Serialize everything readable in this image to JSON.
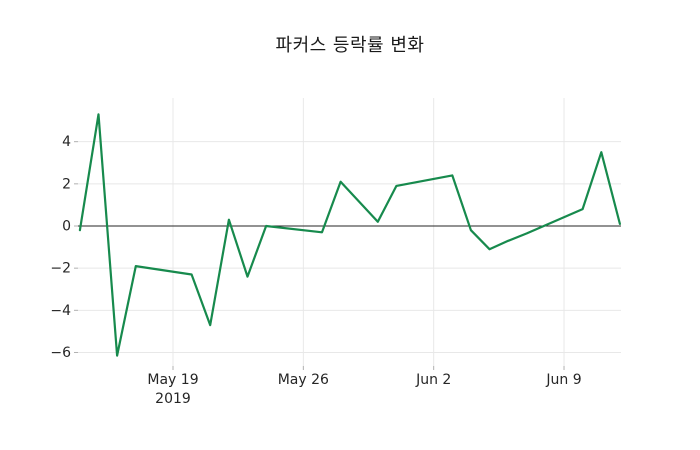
{
  "title": "파커스 등락률 변화",
  "chart_data": {
    "type": "line",
    "title": "파커스 등락률 변화",
    "legend": "none",
    "grid": true,
    "zero_line": true,
    "x_axis": {
      "unit": "date",
      "ticks": [
        {
          "label": "May 19",
          "sublabel": "2019",
          "day_offset": 0
        },
        {
          "label": "May 26",
          "sublabel": "",
          "day_offset": 7
        },
        {
          "label": "Jun 2",
          "sublabel": "",
          "day_offset": 14
        },
        {
          "label": "Jun 9",
          "sublabel": "",
          "day_offset": 21
        }
      ]
    },
    "y_axis": {
      "ticks": [
        {
          "label": "4",
          "value": 4
        },
        {
          "label": "2",
          "value": 2
        },
        {
          "label": "0",
          "value": 0
        },
        {
          "label": "−2",
          "value": -2
        },
        {
          "label": "−4",
          "value": -4
        },
        {
          "label": "−6",
          "value": -6
        }
      ],
      "range_approx": [
        -6.4,
        6.1
      ]
    },
    "series": [
      {
        "name": "파커스 등락률",
        "color": "#178a4d",
        "points": [
          {
            "date": "2019-05-14",
            "day_offset": -5,
            "value": -0.2
          },
          {
            "date": "2019-05-15",
            "day_offset": -4,
            "value": 5.3
          },
          {
            "date": "2019-05-16",
            "day_offset": -3,
            "value": -6.15
          },
          {
            "date": "2019-05-17",
            "day_offset": -2,
            "value": -1.9
          },
          {
            "date": "2019-05-20",
            "day_offset": 1,
            "value": -2.3
          },
          {
            "date": "2019-05-21",
            "day_offset": 2,
            "value": -4.7
          },
          {
            "date": "2019-05-22",
            "day_offset": 3,
            "value": 0.3
          },
          {
            "date": "2019-05-23",
            "day_offset": 4,
            "value": -2.4
          },
          {
            "date": "2019-05-24",
            "day_offset": 5,
            "value": 0.0
          },
          {
            "date": "2019-05-27",
            "day_offset": 8,
            "value": -0.3
          },
          {
            "date": "2019-05-28",
            "day_offset": 9,
            "value": 2.1
          },
          {
            "date": "2019-05-29",
            "day_offset": 10,
            "value": 1.15
          },
          {
            "date": "2019-05-30",
            "day_offset": 11,
            "value": 0.2
          },
          {
            "date": "2019-05-31",
            "day_offset": 12,
            "value": 1.9
          },
          {
            "date": "2019-06-03",
            "day_offset": 15,
            "value": 2.4
          },
          {
            "date": "2019-06-04",
            "day_offset": 16,
            "value": -0.2
          },
          {
            "date": "2019-06-05",
            "day_offset": 17,
            "value": -1.1
          },
          {
            "date": "2019-06-06",
            "day_offset": 18,
            "value": -0.7
          },
          {
            "date": "2019-06-07",
            "day_offset": 19,
            "value": -0.35
          },
          {
            "date": "2019-06-10",
            "day_offset": 22,
            "value": 0.8
          },
          {
            "date": "2019-06-11",
            "day_offset": 23,
            "value": 3.5
          },
          {
            "date": "2019-06-12",
            "day_offset": 24,
            "value": 0.1
          }
        ]
      }
    ],
    "colors": {
      "line": "#178a4d",
      "grid": "#e8e8e8",
      "zero_line": "#262626",
      "tick_mark": "#b0b0b0",
      "tick_text": "#262626",
      "background": "#ffffff"
    }
  }
}
